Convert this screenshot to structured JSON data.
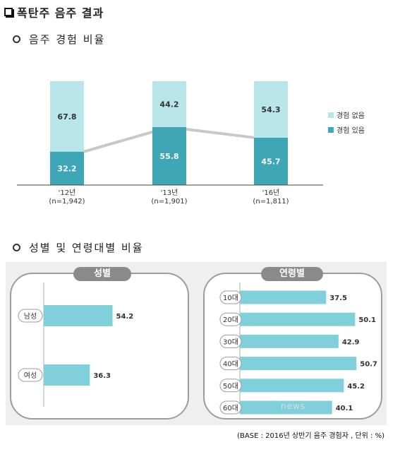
{
  "title": "폭탄주 음주 결과",
  "section1": {
    "title": "음주 경험 비율"
  },
  "section2": {
    "title": "성별 및 연령대별 비율"
  },
  "colors": {
    "no_exp": "#b9e6ea",
    "yes_exp": "#3ea6b4",
    "trend": "#c8c8c8",
    "hbar": "#7fd0da"
  },
  "chart_data": [
    {
      "type": "bar",
      "stacked": true,
      "categories": [
        "'12년",
        "'13년",
        "'16년"
      ],
      "sublabels": [
        "(n=1,942)",
        "(n=1,901)",
        "(n=1,811)"
      ],
      "series": [
        {
          "name": "경험 있음",
          "values": [
            32.2,
            55.8,
            45.7
          ]
        },
        {
          "name": "경험 없음",
          "values": [
            67.8,
            44.2,
            54.3
          ]
        }
      ],
      "legend": [
        "경험 없음",
        "경험 있음"
      ],
      "ylim": [
        0,
        100
      ],
      "legend_position": "right"
    },
    {
      "type": "bar",
      "orientation": "horizontal",
      "panel_title": "성별",
      "categories": [
        "남성",
        "여성"
      ],
      "values": [
        54.2,
        36.3
      ]
    },
    {
      "type": "bar",
      "orientation": "horizontal",
      "panel_title": "연령별",
      "categories": [
        "10대",
        "20대",
        "30대",
        "40대",
        "50대",
        "60대"
      ],
      "values": [
        37.5,
        50.1,
        42.9,
        50.7,
        45.2,
        40.1
      ]
    }
  ],
  "base_note": "(BASE : 2016년 상반기 음주 경험자 , 단위 : %)",
  "watermark": "news"
}
